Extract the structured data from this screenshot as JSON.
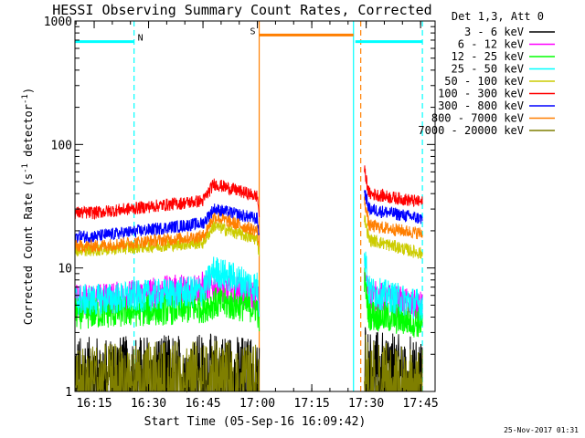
{
  "chart_data": {
    "type": "line",
    "title": "HESSI Observing Summary Count Rates, Corrected",
    "xlabel": "Start Time (05-Sep-16 16:09:42)",
    "ylabel": "Corrected Count Rate (s⁻¹ detector⁻¹)",
    "ylabel_main": "Corrected Count Rate (s",
    "ylabel_sup1": "-1",
    "ylabel_mid": " detector",
    "ylabel_sup2": "-1",
    "ylabel_end": ")",
    "yscale": "log",
    "ylim": [
      1,
      1000
    ],
    "xlim": [
      "16:09:42",
      "17:49:00"
    ],
    "x_ticks": [
      "16:15",
      "16:30",
      "16:45",
      "17:00",
      "17:15",
      "17:30",
      "17:45"
    ],
    "y_ticks": [
      {
        "value": 1,
        "label": "1"
      },
      {
        "value": 10,
        "label": "10"
      },
      {
        "value": 100,
        "label": "100"
      },
      {
        "value": 1000,
        "label": "1000"
      }
    ],
    "legend_header": "Det 1,3, Att 0",
    "legend_position": "top-right",
    "timestamp": "25-Nov-2017 01:31",
    "series": [
      {
        "name": "3 - 6 keV",
        "color": "#000000",
        "peak_times": [
          "16:15",
          "16:45",
          "17:00",
          "17:29",
          "17:44"
        ],
        "segment1": [
          1.6,
          1.7,
          1.7,
          1.6,
          1.5
        ],
        "segment2": [
          2.2,
          1.8,
          1.6
        ]
      },
      {
        "name": "6 - 12 keV",
        "color": "#ff00ff",
        "peak_times": [
          "16:15",
          "16:45",
          "17:00",
          "17:29",
          "17:44"
        ],
        "segment1": [
          5.5,
          7.0,
          7.0,
          6.0,
          4.8
        ],
        "segment2": [
          9.0,
          6.0,
          4.8
        ]
      },
      {
        "name": "12 - 25 keV",
        "color": "#00ff00",
        "peak_times": [
          "16:15",
          "16:45",
          "17:00",
          "17:29",
          "17:44"
        ],
        "segment1": [
          4.3,
          4.8,
          5.2,
          4.8,
          3.6
        ],
        "segment2": [
          8.0,
          4.2,
          3.6
        ]
      },
      {
        "name": "25 - 50 keV",
        "color": "#00ffff",
        "peak_times": [
          "16:15",
          "16:45",
          "17:00",
          "17:29",
          "17:44"
        ],
        "segment1": [
          5.5,
          6.5,
          9.5,
          7.0,
          5.0
        ],
        "segment2": [
          14.0,
          6.5,
          5.0
        ]
      },
      {
        "name": "50 - 100 keV",
        "color": "#cccc00",
        "peak_times": [
          "16:15",
          "16:45",
          "17:00",
          "17:29",
          "17:44"
        ],
        "segment1": [
          14.0,
          16.0,
          22.0,
          17.0,
          13.0
        ],
        "segment2": [
          26.0,
          17.0,
          13.0
        ]
      },
      {
        "name": "100 - 300 keV",
        "color": "#ff0000",
        "peak_times": [
          "16:15",
          "16:45",
          "17:00",
          "17:29",
          "17:44"
        ],
        "segment1": [
          28.0,
          35.0,
          48.0,
          38.0,
          27.0
        ],
        "segment2": [
          62.0,
          40.0,
          34.0
        ]
      },
      {
        "name": "300 - 800 keV",
        "color": "#0000ff",
        "peak_times": [
          "16:15",
          "16:45",
          "17:00",
          "17:29",
          "17:44"
        ],
        "segment1": [
          18.0,
          23.0,
          30.0,
          25.0,
          18.0
        ],
        "segment2": [
          42.0,
          30.0,
          25.0
        ]
      },
      {
        "name": "800 - 7000 keV",
        "color": "#ff7f00",
        "peak_times": [
          "16:15",
          "16:45",
          "17:00",
          "17:29",
          "17:44"
        ],
        "segment1": [
          15.0,
          18.0,
          26.0,
          20.0,
          14.0
        ],
        "segment2": [
          36.0,
          22.0,
          19.0
        ]
      },
      {
        "name": "7000 - 20000 keV",
        "color": "#7f7f00",
        "peak_times": [
          "16:15",
          "16:45",
          "17:00",
          "17:29",
          "17:44"
        ],
        "segment1": [
          1.4,
          1.5,
          1.5,
          1.4,
          1.3
        ],
        "segment2": [
          2.0,
          1.5,
          1.3
        ]
      }
    ],
    "data_segments": [
      {
        "start": "16:09:42",
        "end": "17:00:30"
      },
      {
        "start": "17:29:30",
        "end": "17:45:30"
      }
    ],
    "flags": [
      {
        "label": "N",
        "color": "#00ffff",
        "start": "16:09:42",
        "end": "16:26:00",
        "value": 680
      },
      {
        "label": "S",
        "color": "#ff7f00",
        "start": "17:00:30",
        "end": "17:26:30",
        "value": 770
      },
      {
        "label": "",
        "color": "#00ffff",
        "start": "17:27:00",
        "end": "17:45:30",
        "value": 680
      }
    ],
    "vertical_markers": [
      {
        "time": "16:26:00",
        "color": "#00ffff",
        "style": "dashed"
      },
      {
        "time": "17:00:30",
        "color": "#ff7f00",
        "style": "solid"
      },
      {
        "time": "17:26:30",
        "color": "#00ffff",
        "style": "solid"
      },
      {
        "time": "17:28:30",
        "color": "#ff7f00",
        "style": "dashed"
      },
      {
        "time": "17:45:30",
        "color": "#00ffff",
        "style": "dashed"
      }
    ]
  }
}
